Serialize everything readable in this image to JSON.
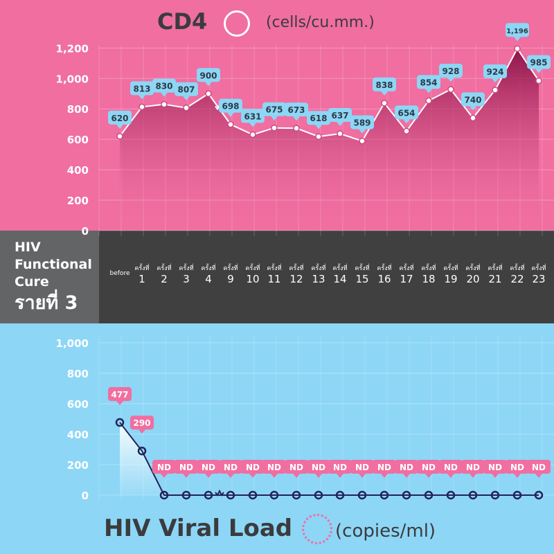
{
  "side": {
    "line1": "HIV",
    "line2": "Functional",
    "line3": "Cure",
    "line4": "รายที่ 3"
  },
  "x_labels": [
    {
      "t": "",
      "n": "before"
    },
    {
      "t": "ครั้งที่",
      "n": "1"
    },
    {
      "t": "ครั้งที่",
      "n": "2"
    },
    {
      "t": "ครั้งที่",
      "n": "3"
    },
    {
      "t": "ครั้งที่",
      "n": "4"
    },
    {
      "t": "ครั้งที่",
      "n": "9"
    },
    {
      "t": "ครั้งที่",
      "n": "10"
    },
    {
      "t": "ครั้งที่",
      "n": "11"
    },
    {
      "t": "ครั้งที่",
      "n": "12"
    },
    {
      "t": "ครั้งที่",
      "n": "13"
    },
    {
      "t": "ครั้งที่",
      "n": "14"
    },
    {
      "t": "ครั้งที่",
      "n": "15"
    },
    {
      "t": "ครั้งที่",
      "n": "16"
    },
    {
      "t": "ครั้งที่",
      "n": "17"
    },
    {
      "t": "ครั้งที่",
      "n": "18"
    },
    {
      "t": "ครั้งที่",
      "n": "19"
    },
    {
      "t": "ครั้งที่",
      "n": "20"
    },
    {
      "t": "ครั้งที่",
      "n": "21"
    },
    {
      "t": "ครั้งที่",
      "n": "22"
    },
    {
      "t": "ครั้งที่",
      "n": "23"
    }
  ],
  "colors": {
    "pink": "#f06ea0",
    "blue": "#8dd6f6",
    "navy": "#232257",
    "dark": "#404041"
  },
  "chart_data": [
    {
      "type": "line",
      "title": "CD4",
      "unit": "(cells/cu.mm.)",
      "ylim": [
        0,
        1200
      ],
      "yticks": [
        "0",
        "200",
        "400",
        "600",
        "800",
        "1,000",
        "1,200"
      ],
      "values": [
        620,
        813,
        830,
        807,
        900,
        698,
        631,
        675,
        673,
        618,
        637,
        589,
        838,
        654,
        854,
        928,
        740,
        924,
        1196,
        985
      ],
      "labels": [
        "620",
        "813",
        "830",
        "807",
        "900",
        "698",
        "631",
        "675",
        "673",
        "618",
        "637",
        "589",
        "838",
        "654",
        "854",
        "928",
        "740",
        "924",
        "1,196",
        "985"
      ]
    },
    {
      "type": "line",
      "title": "HIV Viral Load",
      "unit": "(copies/ml)",
      "ylim": [
        0,
        1000
      ],
      "yticks": [
        "0",
        "200",
        "400",
        "600",
        "800",
        "1,000"
      ],
      "values": [
        477,
        290,
        0,
        0,
        0,
        0,
        0,
        0,
        0,
        0,
        0,
        0,
        0,
        0,
        0,
        0,
        0,
        0,
        0,
        0
      ],
      "labels": [
        "477",
        "290",
        "ND",
        "ND",
        "ND",
        "ND",
        "ND",
        "ND",
        "ND",
        "ND",
        "ND",
        "ND",
        "ND",
        "ND",
        "ND",
        "ND",
        "ND",
        "ND",
        "ND",
        "ND"
      ]
    }
  ]
}
